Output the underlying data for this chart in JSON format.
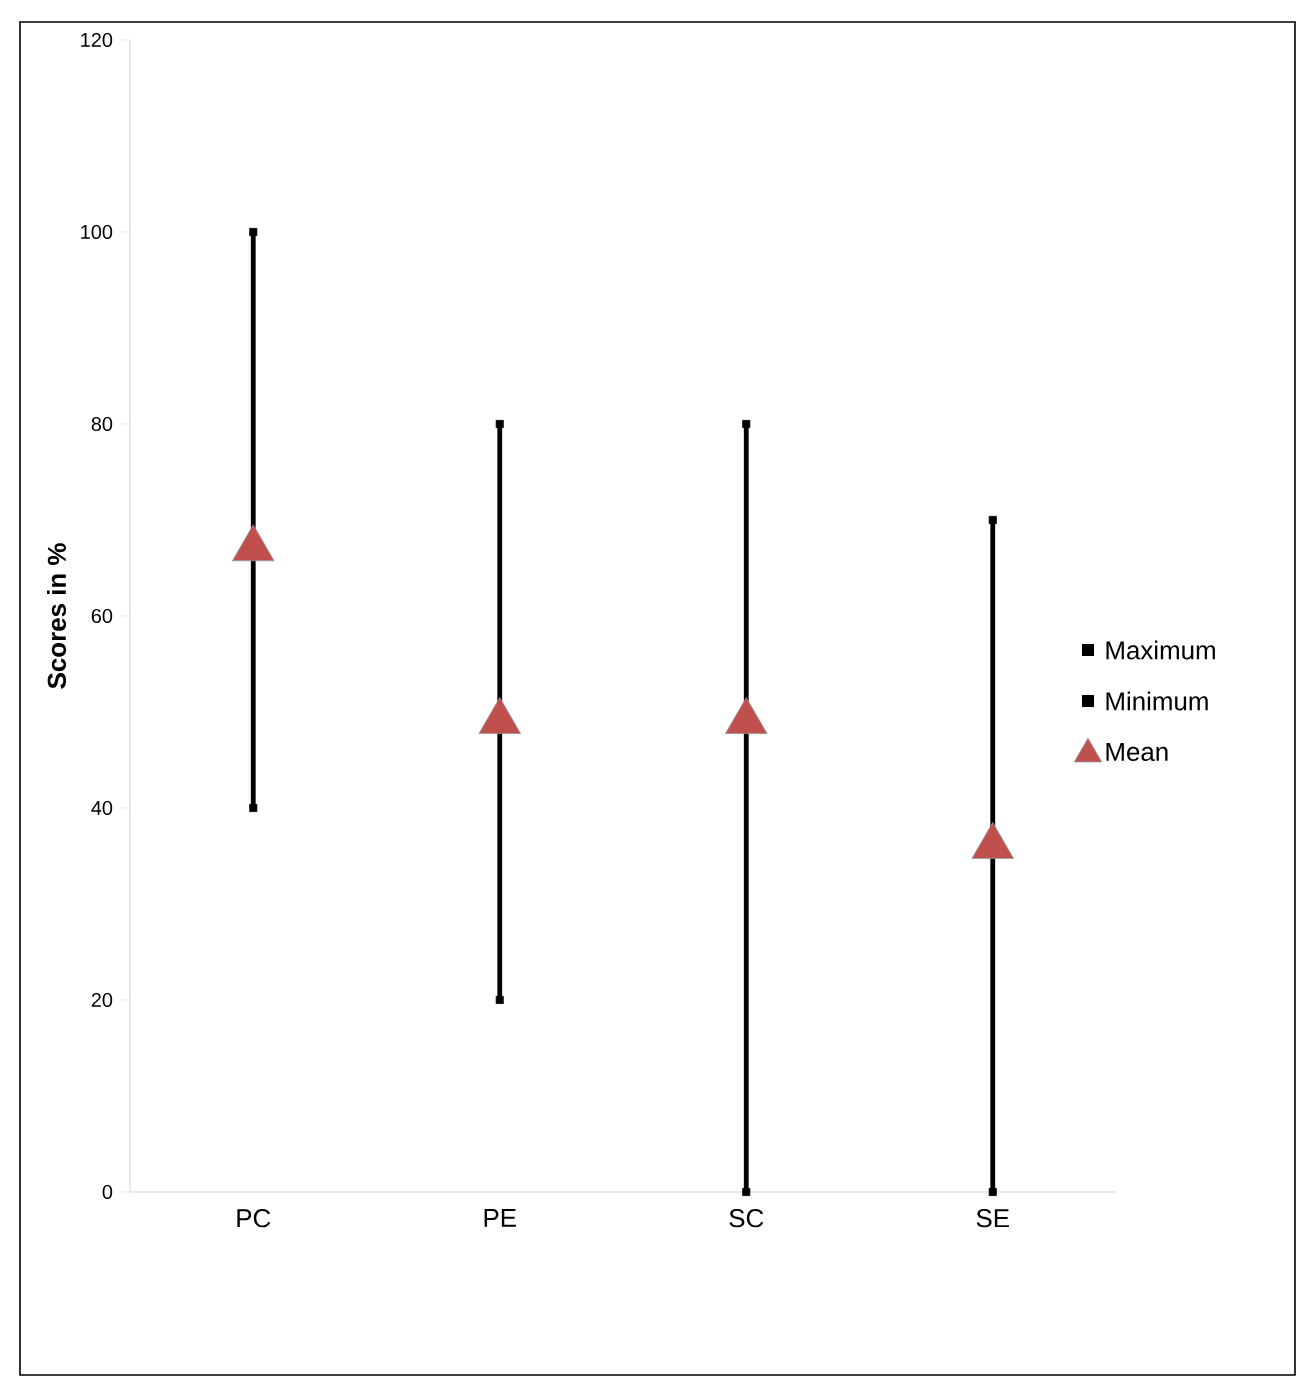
{
  "chart_data": {
    "type": "scatter",
    "ylabel": "Scores in %",
    "categories": [
      "PC",
      "PE",
      "SC",
      "SE"
    ],
    "series": [
      {
        "name": "Maximum",
        "color": "#000000",
        "marker": "square",
        "values": [
          100,
          80,
          80,
          70
        ]
      },
      {
        "name": "Minimum",
        "color": "#000000",
        "marker": "square",
        "values": [
          40,
          20,
          0,
          0
        ]
      },
      {
        "name": "Mean",
        "color": "#c0504d",
        "marker": "triangle",
        "values": [
          67,
          49,
          49,
          36
        ]
      }
    ],
    "ylim": [
      0,
      120
    ],
    "yticks": [
      0,
      20,
      40,
      60,
      80,
      100,
      120
    ],
    "grid": false,
    "legend": "right"
  }
}
